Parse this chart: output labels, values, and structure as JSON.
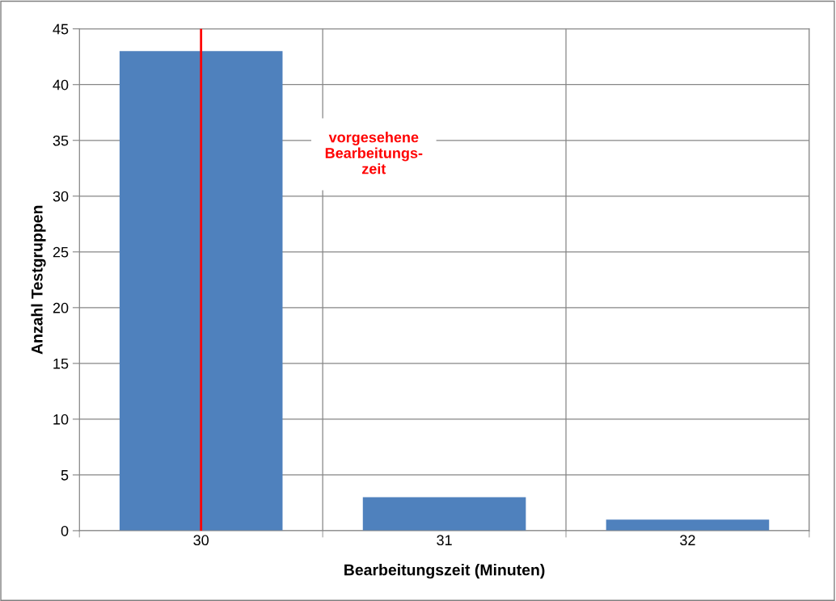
{
  "chart_data": {
    "type": "bar",
    "xlabel": "Bearbeitungszeit (Minuten)",
    "ylabel": "Anzahl Testgruppen",
    "categories": [
      "30",
      "31",
      "32"
    ],
    "values": [
      43,
      3,
      1
    ],
    "color": "#4f81bd",
    "ylim": [
      0,
      45
    ],
    "yticks": [
      0,
      5,
      10,
      15,
      20,
      25,
      30,
      35,
      40,
      45
    ],
    "grid": true,
    "legend": false,
    "ref_lines": [
      {
        "axis": "x",
        "value": "30",
        "label": "vorgesehene\nBearbeitungs-\nzeit",
        "color": "#ff0000",
        "line_style": "solid"
      }
    ]
  }
}
